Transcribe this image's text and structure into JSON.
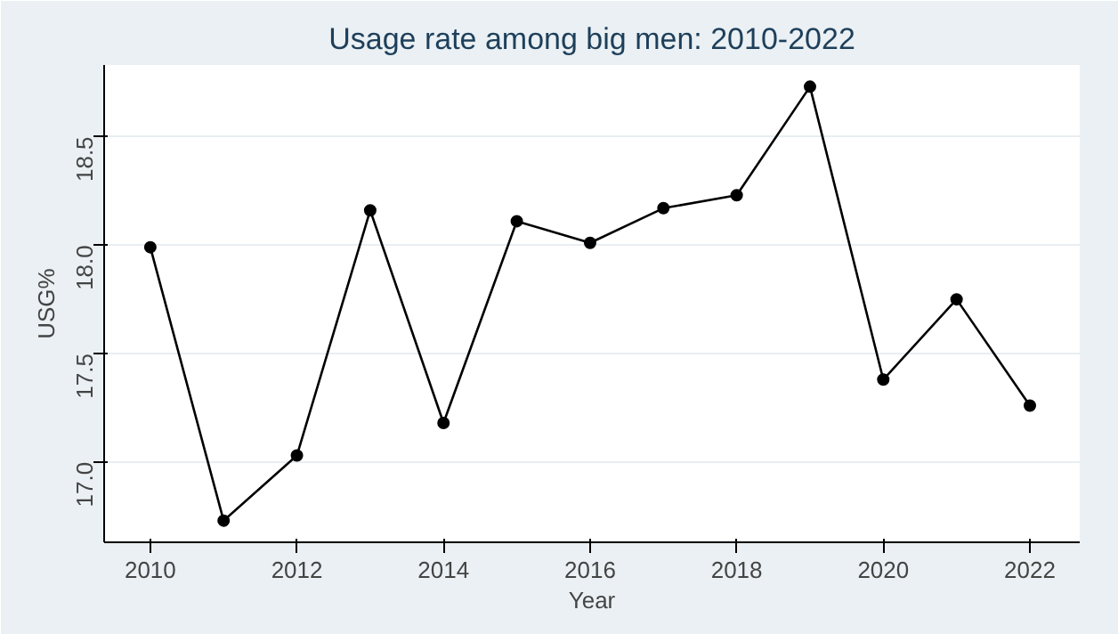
{
  "chart_data": {
    "type": "line",
    "title": "Usage rate among big men: 2010-2022",
    "xlabel": "Year",
    "ylabel": "USG%",
    "x": [
      2010,
      2011,
      2012,
      2013,
      2014,
      2015,
      2016,
      2017,
      2018,
      2019,
      2020,
      2021,
      2022
    ],
    "series": [
      {
        "color": "#000000",
        "values": [
          17.99,
          16.73,
          17.03,
          18.16,
          17.18,
          18.11,
          18.01,
          18.17,
          18.23,
          18.73,
          17.38,
          17.75,
          17.26
        ]
      }
    ],
    "xlim": [
      2009.37,
      2022.68
    ],
    "xticks": [
      2010,
      2012,
      2014,
      2016,
      2018,
      2020,
      2022
    ],
    "ylim": [
      16.63,
      18.83
    ],
    "yticks": [
      {
        "value": 17,
        "label": "17.0"
      },
      17.5,
      {
        "value": 18,
        "label": "18.0"
      },
      18.5
    ],
    "grid": "y",
    "marker": "circle",
    "line_style": "solid"
  }
}
